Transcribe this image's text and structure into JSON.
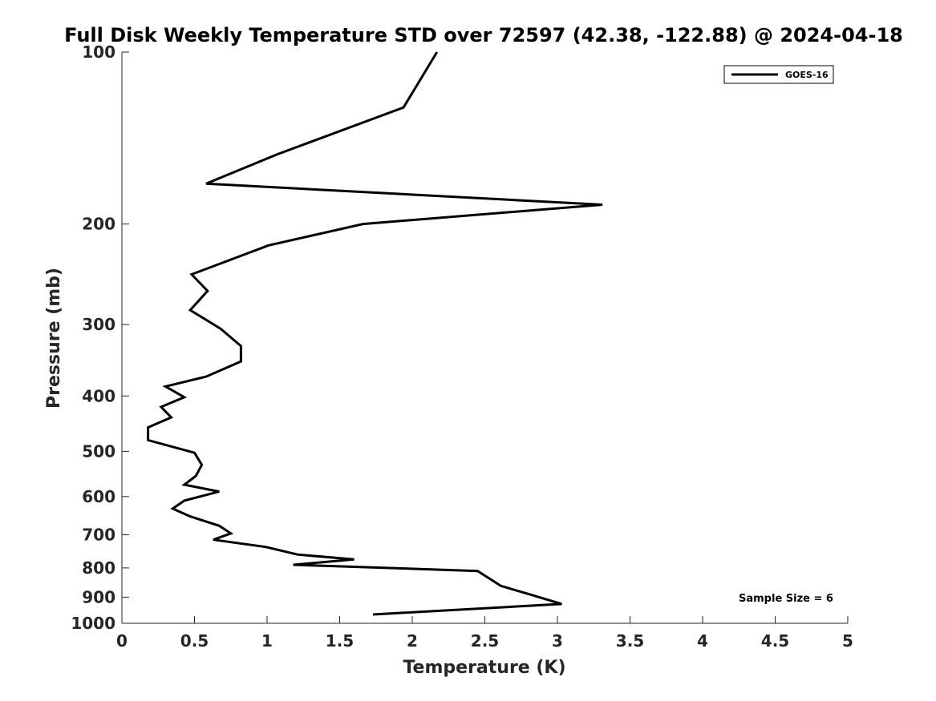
{
  "chart_data": {
    "type": "line",
    "title": "Full Disk Weekly Temperature STD over 72597 (42.38, -122.88) @ 2024-04-18",
    "xlabel": "Temperature (K)",
    "ylabel": "Pressure (mb)",
    "xlim": [
      0,
      5
    ],
    "ylim": [
      100,
      1000
    ],
    "y_scale": "log",
    "y_reversed": true,
    "xticks": [
      0,
      0.5,
      1,
      1.5,
      2,
      2.5,
      3,
      3.5,
      4,
      4.5,
      5
    ],
    "xtick_labels": [
      "0",
      "0.5",
      "1",
      "1.5",
      "2",
      "2.5",
      "3",
      "3.5",
      "4",
      "4.5",
      "5"
    ],
    "yticks": [
      100,
      200,
      300,
      400,
      500,
      600,
      700,
      800,
      900,
      1000
    ],
    "ytick_labels": [
      "100",
      "200",
      "300",
      "400",
      "500",
      "600",
      "700",
      "800",
      "900",
      "1000"
    ],
    "grid": false,
    "legend_position": "top-right",
    "annotation": "Sample Size = 6",
    "series": [
      {
        "name": "GOES-16",
        "color": "#000000",
        "points": [
          [
            2.17,
            100
          ],
          [
            1.94,
            125
          ],
          [
            1.07,
            151
          ],
          [
            0.58,
            170
          ],
          [
            3.31,
            185
          ],
          [
            1.66,
            200
          ],
          [
            1.01,
            218
          ],
          [
            0.48,
            245
          ],
          [
            0.59,
            262
          ],
          [
            0.47,
            283
          ],
          [
            0.68,
            305
          ],
          [
            0.82,
            327
          ],
          [
            0.82,
            348
          ],
          [
            0.58,
            370
          ],
          [
            0.3,
            385
          ],
          [
            0.43,
            402
          ],
          [
            0.27,
            418
          ],
          [
            0.34,
            436
          ],
          [
            0.18,
            454
          ],
          [
            0.18,
            478
          ],
          [
            0.5,
            503
          ],
          [
            0.55,
            528
          ],
          [
            0.51,
            552
          ],
          [
            0.43,
            572
          ],
          [
            0.67,
            588
          ],
          [
            0.43,
            610
          ],
          [
            0.35,
            630
          ],
          [
            0.47,
            650
          ],
          [
            0.67,
            675
          ],
          [
            0.75,
            696
          ],
          [
            0.63,
            714
          ],
          [
            0.99,
            735
          ],
          [
            1.21,
            758
          ],
          [
            1.6,
            773
          ],
          [
            1.18,
            790
          ],
          [
            2.45,
            810
          ],
          [
            2.61,
            860
          ],
          [
            2.81,
            890
          ],
          [
            3.03,
            925
          ],
          [
            1.73,
            965
          ]
        ]
      }
    ]
  }
}
